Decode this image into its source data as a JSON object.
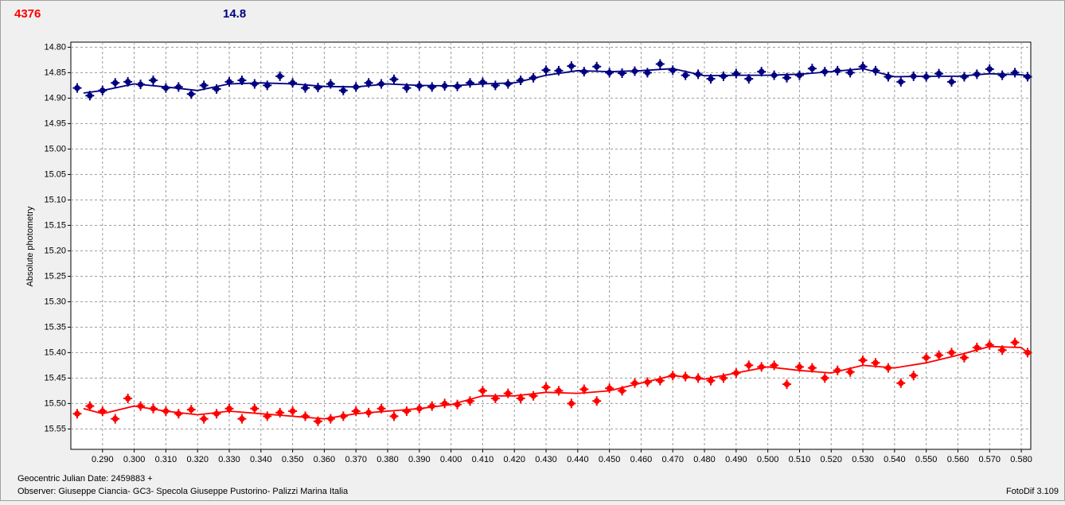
{
  "chart_data": {
    "type": "scatter",
    "y_label": "Absolute photometry",
    "x_label": "Geocentric Julian Date: 2459883 +",
    "footer": "Observer: Giuseppe Ciancia- GC3- Specola Giuseppe Pustorino- Palizzi Marina Italia",
    "software": "FotoDif 3.109",
    "grid": true,
    "y_inverted": true,
    "xlim": [
      0.28,
      0.583
    ],
    "ylim": [
      14.79,
      15.59
    ],
    "xticks": [
      {
        "value": 0.29,
        "label": "0.290"
      },
      {
        "value": 0.3,
        "label": "0.300"
      },
      {
        "value": 0.31,
        "label": "0.310"
      },
      {
        "value": 0.32,
        "label": "0.320"
      },
      {
        "value": 0.33,
        "label": "0.330"
      },
      {
        "value": 0.34,
        "label": "0.340"
      },
      {
        "value": 0.35,
        "label": "0.350"
      },
      {
        "value": 0.36,
        "label": "0.360"
      },
      {
        "value": 0.37,
        "label": "0.370"
      },
      {
        "value": 0.38,
        "label": "0.380"
      },
      {
        "value": 0.39,
        "label": "0.390"
      },
      {
        "value": 0.4,
        "label": "0.400"
      },
      {
        "value": 0.41,
        "label": "0.410"
      },
      {
        "value": 0.42,
        "label": "0.420"
      },
      {
        "value": 0.43,
        "label": "0.430"
      },
      {
        "value": 0.44,
        "label": "0.440"
      },
      {
        "value": 0.45,
        "label": "0.450"
      },
      {
        "value": 0.46,
        "label": "0.460"
      },
      {
        "value": 0.47,
        "label": "0.470"
      },
      {
        "value": 0.48,
        "label": "0.480"
      },
      {
        "value": 0.49,
        "label": "0.490"
      },
      {
        "value": 0.5,
        "label": "0.500"
      },
      {
        "value": 0.51,
        "label": "0.510"
      },
      {
        "value": 0.52,
        "label": "0.520"
      },
      {
        "value": 0.53,
        "label": "0.530"
      },
      {
        "value": 0.54,
        "label": "0.540"
      },
      {
        "value": 0.55,
        "label": "0.550"
      },
      {
        "value": 0.56,
        "label": "0.560"
      },
      {
        "value": 0.57,
        "label": "0.570"
      },
      {
        "value": 0.58,
        "label": "0.580"
      }
    ],
    "yticks": [
      {
        "value": 14.8,
        "label": "14.80"
      },
      14.85,
      {
        "value": 14.9,
        "label": "14.90"
      },
      14.95,
      {
        "value": 15.0,
        "label": "15.00"
      },
      15.05,
      {
        "value": 15.1,
        "label": "15.10"
      },
      15.15,
      {
        "value": 15.2,
        "label": "15.20"
      },
      15.25,
      {
        "value": 15.3,
        "label": "15.30"
      },
      15.35,
      {
        "value": 15.4,
        "label": "15.40"
      },
      15.45,
      {
        "value": 15.5,
        "label": "15.50"
      },
      15.55
    ],
    "x": [
      0.282,
      0.286,
      0.29,
      0.294,
      0.298,
      0.302,
      0.306,
      0.31,
      0.314,
      0.318,
      0.322,
      0.326,
      0.33,
      0.334,
      0.338,
      0.342,
      0.346,
      0.35,
      0.354,
      0.358,
      0.362,
      0.366,
      0.37,
      0.374,
      0.378,
      0.382,
      0.386,
      0.39,
      0.394,
      0.398,
      0.402,
      0.406,
      0.41,
      0.414,
      0.418,
      0.422,
      0.426,
      0.43,
      0.434,
      0.438,
      0.442,
      0.446,
      0.45,
      0.454,
      0.458,
      0.462,
      0.466,
      0.47,
      0.474,
      0.478,
      0.482,
      0.486,
      0.49,
      0.494,
      0.498,
      0.502,
      0.506,
      0.51,
      0.514,
      0.518,
      0.522,
      0.526,
      0.53,
      0.534,
      0.538,
      0.542,
      0.546,
      0.55,
      0.554,
      0.558,
      0.562,
      0.566,
      0.57,
      0.574,
      0.578,
      0.582
    ],
    "trend_x": [
      0.284,
      0.29,
      0.3,
      0.31,
      0.32,
      0.33,
      0.34,
      0.35,
      0.36,
      0.37,
      0.38,
      0.39,
      0.4,
      0.41,
      0.42,
      0.43,
      0.44,
      0.45,
      0.46,
      0.47,
      0.48,
      0.49,
      0.5,
      0.51,
      0.52,
      0.53,
      0.54,
      0.55,
      0.56,
      0.57,
      0.58,
      0.582
    ],
    "series": [
      {
        "name": "4376",
        "color": "#ff0000",
        "values": [
          15.52,
          15.505,
          15.515,
          15.53,
          15.49,
          15.505,
          15.51,
          15.515,
          15.52,
          15.512,
          15.53,
          15.52,
          15.51,
          15.53,
          15.51,
          15.525,
          15.518,
          15.515,
          15.525,
          15.535,
          15.53,
          15.525,
          15.515,
          15.518,
          15.51,
          15.525,
          15.515,
          15.51,
          15.505,
          15.5,
          15.502,
          15.495,
          15.475,
          15.49,
          15.48,
          15.49,
          15.485,
          15.468,
          15.475,
          15.5,
          15.472,
          15.495,
          15.47,
          15.475,
          15.46,
          15.458,
          15.455,
          15.445,
          15.447,
          15.45,
          15.455,
          15.45,
          15.44,
          15.425,
          15.428,
          15.425,
          15.462,
          15.428,
          15.43,
          15.45,
          15.435,
          15.438,
          15.415,
          15.42,
          15.43,
          15.46,
          15.445,
          15.41,
          15.405,
          15.4,
          15.41,
          15.39,
          15.385,
          15.395,
          15.38,
          15.4
        ],
        "trend": [
          15.51,
          15.52,
          15.505,
          15.515,
          15.522,
          15.515,
          15.52,
          15.525,
          15.53,
          15.52,
          15.515,
          15.51,
          15.502,
          15.485,
          15.485,
          15.478,
          15.48,
          15.475,
          15.46,
          15.445,
          15.452,
          15.44,
          15.428,
          15.435,
          15.44,
          15.425,
          15.43,
          15.42,
          15.405,
          15.388,
          15.39,
          15.4
        ]
      },
      {
        "name": "14.8",
        "color": "#000080",
        "values": [
          14.88,
          14.895,
          14.885,
          14.87,
          14.868,
          14.873,
          14.865,
          14.88,
          14.878,
          14.892,
          14.875,
          14.882,
          14.868,
          14.865,
          14.872,
          14.875,
          14.857,
          14.87,
          14.88,
          14.879,
          14.872,
          14.885,
          14.878,
          14.87,
          14.872,
          14.863,
          14.88,
          14.876,
          14.878,
          14.876,
          14.877,
          14.87,
          14.869,
          14.875,
          14.872,
          14.865,
          14.86,
          14.845,
          14.846,
          14.837,
          14.848,
          14.838,
          14.85,
          14.851,
          14.847,
          14.85,
          14.833,
          14.845,
          14.855,
          14.853,
          14.862,
          14.857,
          14.852,
          14.862,
          14.848,
          14.855,
          14.86,
          14.855,
          14.842,
          14.848,
          14.846,
          14.85,
          14.838,
          14.846,
          14.858,
          14.868,
          14.857,
          14.858,
          14.852,
          14.868,
          14.858,
          14.853,
          14.843,
          14.855,
          14.85,
          14.858
        ],
        "trend": [
          14.89,
          14.885,
          14.872,
          14.878,
          14.885,
          14.872,
          14.87,
          14.872,
          14.877,
          14.878,
          14.872,
          14.875,
          14.876,
          14.872,
          14.87,
          14.855,
          14.846,
          14.848,
          14.846,
          14.842,
          14.856,
          14.855,
          14.855,
          14.853,
          14.848,
          14.842,
          14.858,
          14.857,
          14.857,
          14.852,
          14.854,
          14.856
        ]
      }
    ]
  }
}
